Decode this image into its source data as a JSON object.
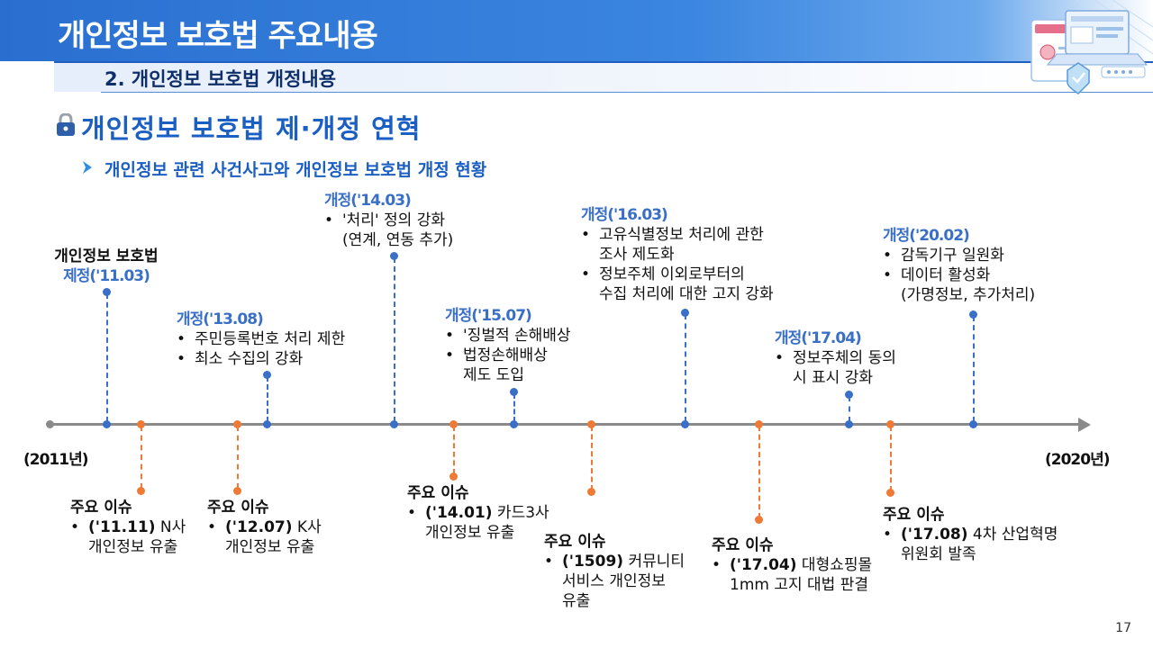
{
  "header": {
    "title": "개인정보 보호법 주요내용"
  },
  "subheader": {
    "title": "2. 개인정보 보호법 개정내용"
  },
  "section": {
    "title": "개인정보 보호법 제·개정 연혁",
    "subtitle": "개인정보 관련 사건사고와 개인정보 보호법 개정 현황"
  },
  "timeline": {
    "start_label": "(2011년)",
    "end_label": "(2020년)",
    "bullet": "•",
    "enact": {
      "title": "개인정보 보호법",
      "label": "제정('11.03)"
    },
    "revisions": [
      {
        "label": "개정('13.08)",
        "lines": [
          {
            "t": "주민등록번호 처리 제한"
          },
          {
            "t": "최소 수집의 강화"
          }
        ]
      },
      {
        "label": "개정('14.03)",
        "lines": [
          {
            "t": "'처리' 정의 강화",
            "c": "(연계, 연동 추가)"
          }
        ]
      },
      {
        "label": "개정('15.07)",
        "lines": [
          {
            "t": "'징벌적 손해배상"
          },
          {
            "t": "법정손해배상",
            "c": "제도 도입"
          }
        ]
      },
      {
        "label": "개정('16.03)",
        "lines": [
          {
            "t": "고유식별정보 처리에 관한",
            "c": "조사 제도화"
          },
          {
            "t": "정보주체 이외로부터의",
            "c": "수집 처리에 대한 고지 강화"
          }
        ]
      },
      {
        "label": "개정('17.04)",
        "lines": [
          {
            "t": "정보주체의 동의",
            "c": "시 표시 강화"
          }
        ]
      },
      {
        "label": "개정('20.02)",
        "lines": [
          {
            "t": "감독기구 일원화"
          },
          {
            "t": "데이터 활성화",
            "c": "(가명정보, 추가처리)"
          }
        ]
      }
    ],
    "issue_title": "주요 이슈",
    "issues": [
      {
        "date": "('11.11)",
        "text": " N사",
        "cont": [
          "개인정보 유출"
        ]
      },
      {
        "date": "('12.07)",
        "text": " K사",
        "cont": [
          "개인정보 유출"
        ]
      },
      {
        "date": "('14.01)",
        "text": " 카드3사",
        "cont": [
          "개인정보 유출"
        ]
      },
      {
        "date": "('1509)",
        "text": " 커뮤니티",
        "cont": [
          "서비스 개인정보",
          "유출"
        ]
      },
      {
        "date": "('17.04)",
        "text": " 대형쇼핑몰",
        "cont": [
          "1mm 고지 대법 판결"
        ]
      },
      {
        "date": "('17.08)",
        "text": " 4차 산업혁명",
        "cont": [
          "위원회 발족"
        ]
      }
    ]
  },
  "page_number": "17",
  "colors": {
    "primary": "#2a6fd0",
    "blue_marker": "#3a6fc7",
    "orange_marker": "#ee7a35",
    "axis": "#8a8a8a"
  },
  "icons": {
    "section": "lock-icon",
    "subsection": "chevron-right-icon",
    "decoration": "security-laptop-illustration"
  }
}
